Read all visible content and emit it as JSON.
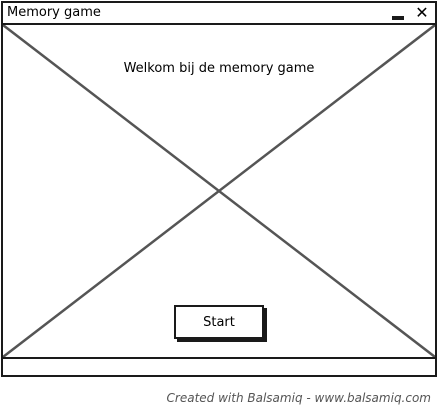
{
  "window": {
    "title": "Memory game",
    "minimize_icon": "minimize-icon",
    "close_icon": "close-icon"
  },
  "main": {
    "welcome_text": "Welkom bij de memory game",
    "start_label": "Start"
  },
  "footer": {
    "credit": "Created with Balsamiq - www.balsamiq.com"
  }
}
